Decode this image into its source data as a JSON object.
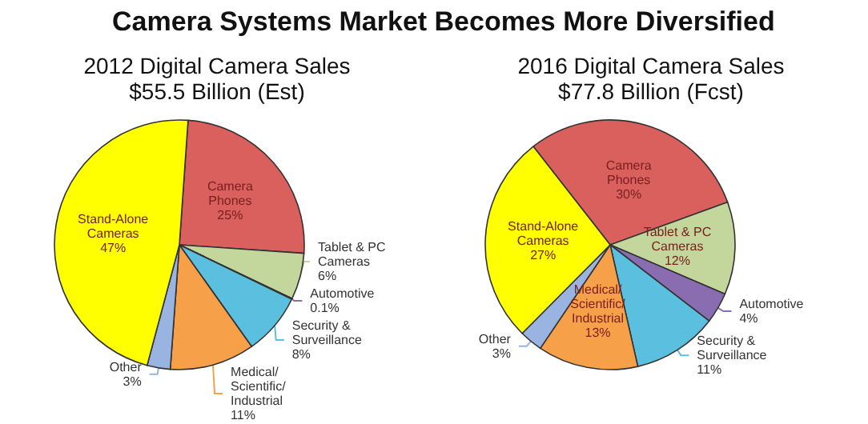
{
  "chart_data": [
    {
      "type": "other",
      "title": "Camera Systems Market Becomes More Diversified"
    },
    {
      "type": "pie",
      "title": "2012 Digital Camera Sales",
      "subtitle": "$55.5 Billion (Est)",
      "categories": [
        "Camera Phones",
        "Tablet & PC Cameras",
        "Automotive",
        "Security & Surveillance",
        "Medical/Scientific/Industrial",
        "Other",
        "Stand-Alone Cameras"
      ],
      "values": [
        25,
        6,
        0.1,
        8,
        11,
        3,
        47
      ],
      "colors": [
        "#d9605c",
        "#c3d69b",
        "#8a6cb0",
        "#5bc0e0",
        "#f7a04a",
        "#99b4e0",
        "#ffff00"
      ],
      "value_labels": [
        "25%",
        "6%",
        "0.1%",
        "8%",
        "11%",
        "3%",
        "47%"
      ]
    },
    {
      "type": "pie",
      "title": "2016 Digital Camera Sales",
      "subtitle": "$77.8 Billion (Fcst)",
      "categories": [
        "Camera Phones",
        "Tablet & PC Cameras",
        "Automotive",
        "Security & Surveillance",
        "Medical/Scientific/Industrial",
        "Other",
        "Stand-Alone Cameras"
      ],
      "values": [
        30,
        12,
        4,
        11,
        13,
        3,
        27
      ],
      "colors": [
        "#d9605c",
        "#c3d69b",
        "#8a6cb0",
        "#5bc0e0",
        "#f7a04a",
        "#99b4e0",
        "#ffff00"
      ],
      "value_labels": [
        "30%",
        "12%",
        "4%",
        "11%",
        "13%",
        "3%",
        "27%"
      ]
    }
  ]
}
